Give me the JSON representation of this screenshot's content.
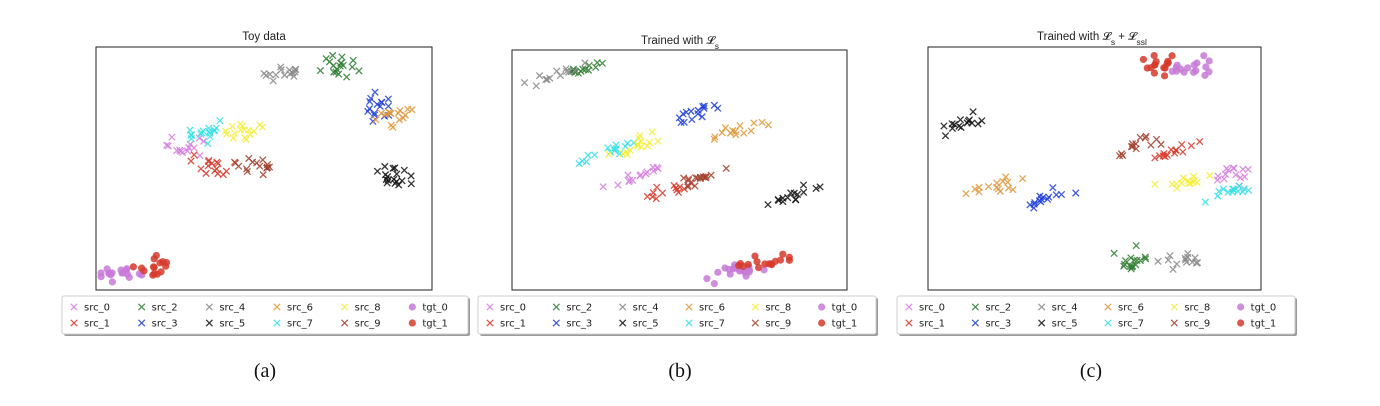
{
  "captions": [
    "(a)",
    "(b)",
    "(c)"
  ],
  "legend_entries": [
    {
      "label": "src_0",
      "color": "#d67de0",
      "marker": "x"
    },
    {
      "label": "src_1",
      "color": "#d7392b",
      "marker": "x"
    },
    {
      "label": "src_2",
      "color": "#2e7d32",
      "marker": "x"
    },
    {
      "label": "src_3",
      "color": "#1f3fd6",
      "marker": "x"
    },
    {
      "label": "src_4",
      "color": "#8a8a8a",
      "marker": "x"
    },
    {
      "label": "src_5",
      "color": "#111111",
      "marker": "x"
    },
    {
      "label": "src_6",
      "color": "#e0973a",
      "marker": "x"
    },
    {
      "label": "src_7",
      "color": "#37e0e6",
      "marker": "x"
    },
    {
      "label": "src_8",
      "color": "#f5ef3a",
      "marker": "x"
    },
    {
      "label": "src_9",
      "color": "#a0412f",
      "marker": "x"
    },
    {
      "label": "tgt_0",
      "color": "#c77ad7",
      "marker": "o"
    },
    {
      "label": "tgt_1",
      "color": "#d63a2c",
      "marker": "o"
    }
  ],
  "chart_data": [
    {
      "type": "scatter",
      "title": "Toy data",
      "xlabel": "",
      "ylabel": "",
      "axes_visible": false,
      "legend_position": "below",
      "clusters": [
        {
          "series": "src_0",
          "cx": 0.26,
          "cy": 0.59,
          "sx": 0.03,
          "sy": 0.018,
          "angle": 0,
          "n": 14,
          "seed": 101
        },
        {
          "series": "src_1",
          "cx": 0.33,
          "cy": 0.51,
          "sx": 0.03,
          "sy": 0.024,
          "angle": 0,
          "n": 16,
          "seed": 102
        },
        {
          "series": "src_2",
          "cx": 0.72,
          "cy": 0.92,
          "sx": 0.03,
          "sy": 0.022,
          "angle": 0,
          "n": 18,
          "seed": 103
        },
        {
          "series": "src_3",
          "cx": 0.84,
          "cy": 0.74,
          "sx": 0.025,
          "sy": 0.028,
          "angle": 0,
          "n": 16,
          "seed": 104
        },
        {
          "series": "src_4",
          "cx": 0.56,
          "cy": 0.89,
          "sx": 0.03,
          "sy": 0.02,
          "angle": 0,
          "n": 15,
          "seed": 105
        },
        {
          "series": "src_5",
          "cx": 0.88,
          "cy": 0.47,
          "sx": 0.03,
          "sy": 0.02,
          "angle": 0,
          "n": 18,
          "seed": 106
        },
        {
          "series": "src_6",
          "cx": 0.88,
          "cy": 0.71,
          "sx": 0.03,
          "sy": 0.022,
          "angle": 0,
          "n": 15,
          "seed": 107
        },
        {
          "series": "src_7",
          "cx": 0.31,
          "cy": 0.65,
          "sx": 0.03,
          "sy": 0.02,
          "angle": 0,
          "n": 16,
          "seed": 108
        },
        {
          "series": "src_8",
          "cx": 0.43,
          "cy": 0.65,
          "sx": 0.03,
          "sy": 0.02,
          "angle": 0,
          "n": 16,
          "seed": 109
        },
        {
          "series": "src_9",
          "cx": 0.48,
          "cy": 0.52,
          "sx": 0.028,
          "sy": 0.024,
          "angle": 0,
          "n": 15,
          "seed": 110
        },
        {
          "series": "tgt_0",
          "cx": 0.07,
          "cy": 0.07,
          "sx": 0.035,
          "sy": 0.018,
          "angle": 0,
          "n": 18,
          "seed": 111
        },
        {
          "series": "tgt_1",
          "cx": 0.18,
          "cy": 0.09,
          "sx": 0.025,
          "sy": 0.025,
          "angle": 0,
          "n": 15,
          "seed": 112
        }
      ]
    },
    {
      "type": "scatter",
      "title": "Trained with 𝓛",
      "title_sub": "s",
      "title_tail": "",
      "xlabel": "",
      "ylabel": "",
      "axes_visible": false,
      "legend_position": "below",
      "clusters": [
        {
          "series": "src_0",
          "cx": 0.38,
          "cy": 0.48,
          "sx": 0.05,
          "sy": 0.012,
          "angle": -25,
          "n": 14,
          "seed": 201
        },
        {
          "series": "src_1",
          "cx": 0.48,
          "cy": 0.42,
          "sx": 0.05,
          "sy": 0.012,
          "angle": -25,
          "n": 15,
          "seed": 202
        },
        {
          "series": "src_2",
          "cx": 0.21,
          "cy": 0.92,
          "sx": 0.045,
          "sy": 0.012,
          "angle": -25,
          "n": 14,
          "seed": 203
        },
        {
          "series": "src_3",
          "cx": 0.54,
          "cy": 0.73,
          "sx": 0.05,
          "sy": 0.012,
          "angle": -25,
          "n": 15,
          "seed": 204
        },
        {
          "series": "src_4",
          "cx": 0.12,
          "cy": 0.89,
          "sx": 0.045,
          "sy": 0.012,
          "angle": -25,
          "n": 13,
          "seed": 205
        },
        {
          "series": "src_5",
          "cx": 0.86,
          "cy": 0.4,
          "sx": 0.045,
          "sy": 0.012,
          "angle": -25,
          "n": 15,
          "seed": 206
        },
        {
          "series": "src_6",
          "cx": 0.66,
          "cy": 0.66,
          "sx": 0.05,
          "sy": 0.012,
          "angle": -25,
          "n": 14,
          "seed": 207
        },
        {
          "series": "src_7",
          "cx": 0.27,
          "cy": 0.57,
          "sx": 0.055,
          "sy": 0.012,
          "angle": -25,
          "n": 15,
          "seed": 208
        },
        {
          "series": "src_8",
          "cx": 0.37,
          "cy": 0.6,
          "sx": 0.045,
          "sy": 0.014,
          "angle": -25,
          "n": 15,
          "seed": 209
        },
        {
          "series": "src_9",
          "cx": 0.56,
          "cy": 0.46,
          "sx": 0.045,
          "sy": 0.012,
          "angle": -25,
          "n": 14,
          "seed": 210
        },
        {
          "series": "tgt_0",
          "cx": 0.7,
          "cy": 0.08,
          "sx": 0.045,
          "sy": 0.018,
          "angle": -15,
          "n": 18,
          "seed": 211
        },
        {
          "series": "tgt_1",
          "cx": 0.75,
          "cy": 0.11,
          "sx": 0.04,
          "sy": 0.02,
          "angle": -15,
          "n": 16,
          "seed": 212
        }
      ]
    },
    {
      "type": "scatter",
      "title": "Trained with 𝓛",
      "title_sub": "s",
      "title_tail": " + 𝓛",
      "title_sub2": "ssl",
      "xlabel": "",
      "ylabel": "",
      "axes_visible": false,
      "legend_position": "below",
      "clusters": [
        {
          "series": "src_0",
          "cx": 0.91,
          "cy": 0.47,
          "sx": 0.035,
          "sy": 0.018,
          "angle": -20,
          "n": 14,
          "seed": 301
        },
        {
          "series": "src_1",
          "cx": 0.76,
          "cy": 0.58,
          "sx": 0.035,
          "sy": 0.016,
          "angle": -20,
          "n": 14,
          "seed": 302
        },
        {
          "series": "src_2",
          "cx": 0.6,
          "cy": 0.12,
          "sx": 0.03,
          "sy": 0.02,
          "angle": -10,
          "n": 16,
          "seed": 303
        },
        {
          "series": "src_3",
          "cx": 0.33,
          "cy": 0.37,
          "sx": 0.04,
          "sy": 0.013,
          "angle": -25,
          "n": 15,
          "seed": 304
        },
        {
          "series": "src_4",
          "cx": 0.76,
          "cy": 0.12,
          "sx": 0.035,
          "sy": 0.018,
          "angle": -10,
          "n": 14,
          "seed": 305
        },
        {
          "series": "src_5",
          "cx": 0.09,
          "cy": 0.68,
          "sx": 0.04,
          "sy": 0.015,
          "angle": -25,
          "n": 15,
          "seed": 306
        },
        {
          "series": "src_6",
          "cx": 0.2,
          "cy": 0.43,
          "sx": 0.045,
          "sy": 0.013,
          "angle": -20,
          "n": 15,
          "seed": 307
        },
        {
          "series": "src_7",
          "cx": 0.9,
          "cy": 0.41,
          "sx": 0.035,
          "sy": 0.016,
          "angle": -20,
          "n": 14,
          "seed": 308
        },
        {
          "series": "src_8",
          "cx": 0.76,
          "cy": 0.44,
          "sx": 0.035,
          "sy": 0.016,
          "angle": -15,
          "n": 14,
          "seed": 309
        },
        {
          "series": "src_9",
          "cx": 0.62,
          "cy": 0.59,
          "sx": 0.04,
          "sy": 0.016,
          "angle": -20,
          "n": 14,
          "seed": 310
        },
        {
          "series": "tgt_0",
          "cx": 0.79,
          "cy": 0.91,
          "sx": 0.04,
          "sy": 0.018,
          "angle": -5,
          "n": 16,
          "seed": 311
        },
        {
          "series": "tgt_1",
          "cx": 0.69,
          "cy": 0.92,
          "sx": 0.025,
          "sy": 0.025,
          "angle": 0,
          "n": 15,
          "seed": 312
        }
      ]
    }
  ]
}
